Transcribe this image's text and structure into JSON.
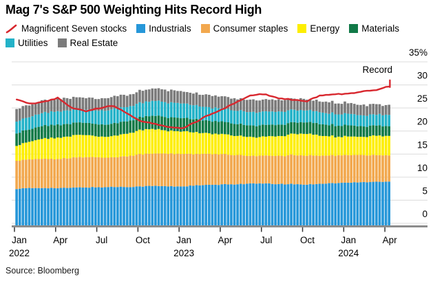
{
  "title": "Mag 7's S&P 500 Weighting Hits Record High",
  "source": "Source: Bloomberg",
  "legend": {
    "rows": [
      [
        "Magnificent Seven stocks",
        "Industrials",
        "Consumer staples",
        "Energy",
        "Materials"
      ],
      [
        "Utilities",
        "Real Estate"
      ]
    ]
  },
  "chart_data": {
    "type": "combo_stacked_bar_plus_line",
    "unit": "%",
    "title": "Mag 7's S&P 500 Weighting Hits Record High",
    "annotation": "Record",
    "grid": "horizontal",
    "legend_position": "top",
    "ylim": [
      0,
      35
    ],
    "y_ticks": [
      0,
      5,
      10,
      15,
      20,
      25,
      30,
      35
    ],
    "y_tick_labels": [
      "0",
      "5",
      "10",
      "15",
      "20",
      "25",
      "30",
      "35%"
    ],
    "x_ticks": [
      {
        "label": "Jan",
        "year": "2022"
      },
      {
        "label": "Apr"
      },
      {
        "label": "Jul"
      },
      {
        "label": "Oct"
      },
      {
        "label": "Jan",
        "year": "2023"
      },
      {
        "label": "Apr"
      },
      {
        "label": "Jul"
      },
      {
        "label": "Oct"
      },
      {
        "label": "Jan",
        "year": "2024"
      },
      {
        "label": "Apr"
      }
    ],
    "x_monthly": [
      "Jan 2022",
      "Feb 2022",
      "Mar 2022",
      "Apr 2022",
      "May 2022",
      "Jun 2022",
      "Jul 2022",
      "Aug 2022",
      "Sep 2022",
      "Oct 2022",
      "Nov 2022",
      "Dec 2022",
      "Jan 2023",
      "Feb 2023",
      "Mar 2023",
      "Apr 2023",
      "May 2023",
      "Jun 2023",
      "Jul 2023",
      "Aug 2023",
      "Sep 2023",
      "Oct 2023",
      "Nov 2023",
      "Dec 2023",
      "Jan 2024",
      "Feb 2024",
      "Mar 2024",
      "Apr 2024"
    ],
    "series": [
      {
        "name": "Magnificent Seven stocks",
        "type": "line",
        "color": "#d8272e",
        "values": [
          26.9,
          25.9,
          26.4,
          27.2,
          25.0,
          24.3,
          25.0,
          25.5,
          23.9,
          22.0,
          21.6,
          20.9,
          20.5,
          22.0,
          23.6,
          24.8,
          26.3,
          27.8,
          28.0,
          27.1,
          26.8,
          26.4,
          27.7,
          28.0,
          28.1,
          28.5,
          28.9,
          29.7
        ]
      },
      {
        "name": "Industrials",
        "type": "bar",
        "color": "#2697d9",
        "values": [
          7.5,
          7.6,
          7.7,
          7.6,
          7.7,
          7.8,
          7.8,
          7.9,
          7.9,
          8.0,
          8.1,
          8.0,
          8.0,
          8.2,
          8.3,
          8.4,
          8.5,
          8.6,
          8.6,
          8.5,
          8.5,
          8.4,
          8.6,
          8.7,
          8.8,
          8.9,
          9.0,
          9.0
        ]
      },
      {
        "name": "Consumer staples",
        "type": "bar",
        "color": "#f2a84e",
        "values": [
          6.1,
          6.2,
          6.3,
          6.3,
          6.5,
          6.6,
          6.5,
          6.4,
          6.7,
          7.0,
          7.0,
          7.1,
          7.1,
          6.8,
          6.7,
          6.5,
          6.3,
          6.0,
          6.0,
          6.1,
          6.3,
          6.3,
          6.1,
          6.0,
          6.0,
          5.9,
          5.8,
          5.7
        ]
      },
      {
        "name": "Energy",
        "type": "bar",
        "color": "#fdee00",
        "values": [
          3.3,
          3.8,
          4.4,
          4.6,
          4.8,
          4.8,
          4.5,
          4.6,
          4.9,
          5.3,
          5.3,
          5.0,
          4.9,
          4.7,
          4.4,
          4.4,
          4.2,
          4.1,
          4.1,
          4.3,
          4.5,
          4.8,
          4.4,
          4.1,
          4.0,
          4.0,
          4.2,
          4.2
        ]
      },
      {
        "name": "Materials",
        "type": "bar",
        "color": "#117a48",
        "values": [
          2.7,
          2.7,
          2.8,
          2.8,
          2.7,
          2.6,
          2.6,
          2.7,
          2.7,
          2.8,
          2.9,
          2.9,
          2.9,
          2.8,
          2.7,
          2.7,
          2.6,
          2.5,
          2.5,
          2.5,
          2.5,
          2.5,
          2.5,
          2.4,
          2.4,
          2.3,
          2.2,
          2.1
        ]
      },
      {
        "name": "Utilities",
        "type": "bar",
        "color": "#23b2c8",
        "values": [
          2.6,
          2.7,
          2.8,
          2.9,
          2.9,
          2.9,
          3.0,
          3.1,
          3.1,
          3.1,
          3.2,
          3.2,
          3.2,
          3.0,
          2.9,
          2.9,
          2.9,
          2.9,
          2.9,
          2.8,
          2.7,
          2.6,
          2.6,
          2.5,
          2.5,
          2.4,
          2.4,
          2.4
        ]
      },
      {
        "name": "Real Estate",
        "type": "bar",
        "color": "#7b7b7b",
        "values": [
          2.7,
          2.7,
          2.7,
          2.7,
          2.7,
          2.6,
          2.6,
          2.7,
          2.6,
          2.6,
          2.6,
          2.6,
          2.6,
          2.6,
          2.6,
          2.6,
          2.6,
          2.6,
          2.6,
          2.5,
          2.5,
          2.4,
          2.4,
          2.4,
          2.4,
          2.3,
          2.2,
          2.1
        ]
      }
    ]
  }
}
